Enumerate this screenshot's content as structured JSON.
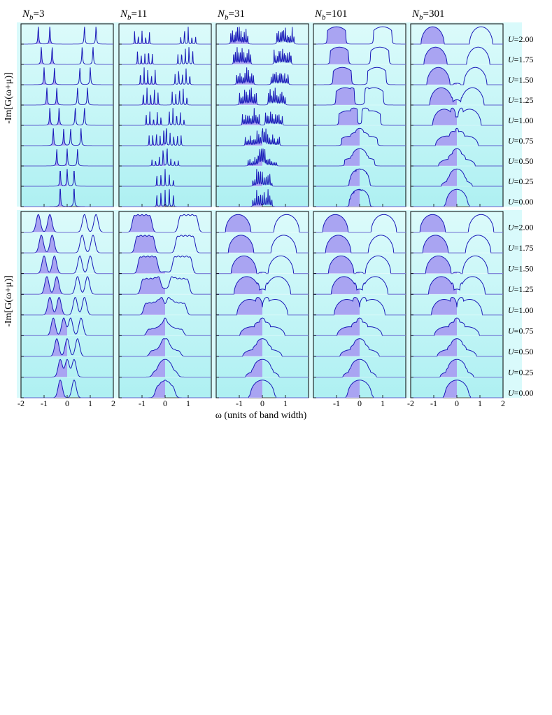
{
  "chart_data": {
    "type": "area",
    "xlabel": "ω (units of band width)",
    "ylabel_top": "-Im[G(ω+μ)]",
    "ylabel_bottom": "-Im[G(ω+μ)]",
    "columns": [
      "Nb=3",
      "Nb=11",
      "Nb=31",
      "Nb=101",
      "Nb=301"
    ],
    "column_labels": [
      {
        "italic": "N",
        "sub": "b",
        "rest": "=3"
      },
      {
        "italic": "N",
        "sub": "b",
        "rest": "=11"
      },
      {
        "italic": "N",
        "sub": "b",
        "rest": "=31"
      },
      {
        "italic": "N",
        "sub": "b",
        "rest": "=101"
      },
      {
        "italic": "N",
        "sub": "b",
        "rest": "=301"
      }
    ],
    "U_values": [
      2.0,
      1.75,
      1.5,
      1.25,
      1.0,
      0.75,
      0.5,
      0.25,
      0.0
    ],
    "U_labels": [
      "U=2.00",
      "U=1.75",
      "U=1.50",
      "U=1.25",
      "U=1.00",
      "U=0.75",
      "U=0.50",
      "U=0.25",
      "U=0.00"
    ],
    "xlim": [
      -2,
      2
    ],
    "x_ticks_first": [
      "-2",
      "-1",
      "0",
      "1",
      "2"
    ],
    "x_ticks_inner": [
      "-1",
      "0",
      "1"
    ],
    "x_ticks_last": [
      "-2",
      "-1",
      "0",
      "1",
      "2"
    ],
    "peak_positions_top_Nb3": [
      {
        "U": 2.0,
        "peaks": [
          -1.25,
          -0.75,
          0.75,
          1.25
        ]
      },
      {
        "U": 1.75,
        "peaks": [
          -1.12,
          -0.65,
          0.65,
          1.12
        ]
      },
      {
        "U": 1.5,
        "peaks": [
          -1.0,
          -0.55,
          0.55,
          1.0
        ]
      },
      {
        "U": 1.25,
        "peaks": [
          -0.88,
          -0.45,
          0.45,
          0.88
        ]
      },
      {
        "U": 1.0,
        "peaks": [
          -0.75,
          -0.35,
          0.35,
          0.75
        ]
      },
      {
        "U": 0.75,
        "peaks": [
          -0.6,
          -0.15,
          0.15,
          0.6
        ]
      },
      {
        "U": 0.5,
        "peaks": [
          -0.45,
          0,
          0.45
        ]
      },
      {
        "U": 0.25,
        "peaks": [
          -0.3,
          0,
          0.3
        ]
      },
      {
        "U": 0.0,
        "peaks": [
          -0.3,
          0.3
        ]
      }
    ],
    "legend": "none",
    "grid": false
  }
}
